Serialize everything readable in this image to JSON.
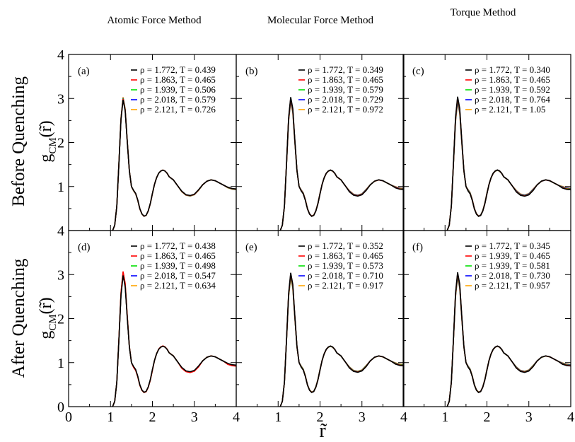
{
  "chart_data": {
    "type": "line",
    "column_titles": [
      "Atomic Force Method",
      "Molecular Force Method",
      "Torque Method"
    ],
    "row_labels": [
      "Before Quenching",
      "After Quenching"
    ],
    "xlabel": "r̃",
    "ylabel": "g",
    "ylabel_sub": "CM",
    "ylabel_arg": "(r̃)",
    "xlim": [
      0,
      4
    ],
    "ylim": [
      0,
      4
    ],
    "xticks": [
      "0",
      "1",
      "2",
      "3",
      "4"
    ],
    "yticks": [
      "0",
      "1",
      "2",
      "3",
      "4"
    ],
    "series_colors": [
      "#000000",
      "#ff0000",
      "#00e000",
      "#0000ff",
      "#ffa500"
    ],
    "profile": {
      "x": [
        1.05,
        1.1,
        1.15,
        1.2,
        1.25,
        1.3,
        1.35,
        1.4,
        1.45,
        1.5,
        1.55,
        1.6,
        1.65,
        1.7,
        1.75,
        1.8,
        1.85,
        1.9,
        1.95,
        2.0,
        2.05,
        2.1,
        2.15,
        2.2,
        2.25,
        2.3,
        2.35,
        2.4,
        2.5,
        2.6,
        2.7,
        2.8,
        2.9,
        3.0,
        3.1,
        3.2,
        3.3,
        3.4,
        3.5,
        3.6,
        3.7,
        3.8,
        3.9,
        4.0
      ],
      "y": [
        0.0,
        0.12,
        0.55,
        1.5,
        2.5,
        2.95,
        2.7,
        2.0,
        1.35,
        1.0,
        0.92,
        0.85,
        0.7,
        0.5,
        0.38,
        0.33,
        0.35,
        0.45,
        0.62,
        0.85,
        1.05,
        1.2,
        1.3,
        1.35,
        1.37,
        1.35,
        1.3,
        1.22,
        1.15,
        1.02,
        0.9,
        0.82,
        0.8,
        0.83,
        0.93,
        1.04,
        1.12,
        1.15,
        1.13,
        1.08,
        1.03,
        0.99,
        0.96,
        0.95
      ]
    },
    "panels": [
      {
        "tag": "(a)",
        "series": [
          {
            "name": "ρ = 1.772, T = 0.439",
            "peak": 2.97
          },
          {
            "name": "ρ = 1.863, T = 0.465",
            "peak": 2.99
          },
          {
            "name": "ρ = 1.939, T = 0.506",
            "peak": 3.0
          },
          {
            "name": "ρ = 2.018, T = 0.579",
            "peak": 3.01
          },
          {
            "name": "ρ = 2.121, T = 0.726",
            "peak": 3.03
          }
        ]
      },
      {
        "tag": "(b)",
        "series": [
          {
            "name": "ρ = 1.772, T = 0.349",
            "peak": 3.03
          },
          {
            "name": "ρ = 1.863, T = 0.465",
            "peak": 3.0
          },
          {
            "name": "ρ = 1.939, T = 0.579",
            "peak": 2.98
          },
          {
            "name": "ρ = 2.018, T = 0.729",
            "peak": 2.95
          },
          {
            "name": "ρ = 2.121, T = 0.972",
            "peak": 2.92
          }
        ]
      },
      {
        "tag": "(c)",
        "series": [
          {
            "name": "ρ = 1.772, T = 0.340",
            "peak": 3.04
          },
          {
            "name": "ρ = 1.863, T = 0.465",
            "peak": 3.01
          },
          {
            "name": "ρ = 1.939, T = 0.592",
            "peak": 2.98
          },
          {
            "name": "ρ = 2.018, T = 0.764",
            "peak": 2.94
          },
          {
            "name": "ρ = 2.121, T = 1.05",
            "peak": 2.9
          }
        ]
      },
      {
        "tag": "(d)",
        "series": [
          {
            "name": "ρ = 1.772, T = 0.438",
            "peak": 2.98
          },
          {
            "name": "ρ = 1.863, T = 0.465",
            "peak": 3.07
          },
          {
            "name": "ρ = 1.939, T = 0.498",
            "peak": 3.05
          },
          {
            "name": "ρ = 2.018, T = 0.547",
            "peak": 3.02
          },
          {
            "name": "ρ = 2.121, T = 0.634",
            "peak": 3.0
          }
        ]
      },
      {
        "tag": "(e)",
        "series": [
          {
            "name": "ρ = 1.772, T = 0.352",
            "peak": 3.04
          },
          {
            "name": "ρ = 1.863, T = 0.465",
            "peak": 3.01
          },
          {
            "name": "ρ = 1.939, T = 0.573",
            "peak": 2.98
          },
          {
            "name": "ρ = 2.018, T = 0.710",
            "peak": 2.96
          },
          {
            "name": "ρ = 2.121, T = 0.917",
            "peak": 2.93
          }
        ]
      },
      {
        "tag": "(f)",
        "series": [
          {
            "name": "ρ = 1.772, T = 0.345",
            "peak": 3.05
          },
          {
            "name": "ρ = 1.939, T = 0.465",
            "peak": 3.02
          },
          {
            "name": "ρ = 1.939, T = 0.581",
            "peak": 2.99
          },
          {
            "name": "ρ = 2.018, T = 0.730",
            "peak": 2.96
          },
          {
            "name": "ρ = 2.121, T = 0.957",
            "peak": 2.93
          }
        ]
      }
    ]
  }
}
